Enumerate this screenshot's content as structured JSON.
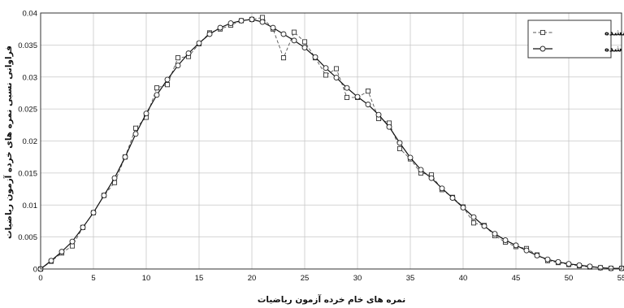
{
  "chart_data": {
    "type": "line",
    "xlabel": "نمره های خام خرده آزمون ریاضیات",
    "ylabel": "فراوانی نسبی نمره های خرده آزمون ریاضیات",
    "xlim": [
      0,
      55
    ],
    "ylim": [
      0,
      0.04
    ],
    "x_ticks": [
      "0",
      "5",
      "10",
      "15",
      "20",
      "25",
      "30",
      "35",
      "40",
      "45",
      "50",
      "55"
    ],
    "y_ticks": [
      "0",
      "0.005",
      "0.01",
      "0.015",
      "0.02",
      "0.025",
      "0.03",
      "0.035",
      "0.04"
    ],
    "grid": true,
    "legend_position": "top-right",
    "x": [
      0,
      1,
      2,
      3,
      4,
      5,
      6,
      7,
      8,
      9,
      10,
      11,
      12,
      13,
      14,
      15,
      16,
      17,
      18,
      19,
      20,
      21,
      22,
      23,
      24,
      25,
      26,
      27,
      28,
      29,
      30,
      31,
      32,
      33,
      34,
      35,
      36,
      37,
      38,
      39,
      40,
      41,
      42,
      43,
      44,
      45,
      46,
      47,
      48,
      49,
      50,
      51,
      52,
      53,
      54,
      55
    ],
    "series": [
      {
        "name": "هموار نشده",
        "marker": "square",
        "style": "dashed",
        "values": [
          0,
          0.0012,
          0.0025,
          0.0036,
          0.0065,
          0.0088,
          0.0115,
          0.0135,
          0.0175,
          0.022,
          0.0237,
          0.0283,
          0.0288,
          0.033,
          0.0332,
          0.0352,
          0.0369,
          0.0375,
          0.0381,
          0.0388,
          0.039,
          0.0393,
          0.0375,
          0.033,
          0.037,
          0.0355,
          0.033,
          0.0303,
          0.0313,
          0.0268,
          0.0268,
          0.0278,
          0.0235,
          0.0228,
          0.0188,
          0.0172,
          0.015,
          0.0147,
          0.0124,
          0.0112,
          0.0097,
          0.0072,
          0.0068,
          0.0052,
          0.0042,
          0.0035,
          0.0032,
          0.0022,
          0.0013,
          0.001,
          0.0007,
          0.0005,
          0.0003,
          0.0002,
          0.0001,
          0.0001
        ]
      },
      {
        "name": "هموار شده",
        "marker": "circle",
        "style": "solid",
        "values": [
          0,
          0.0013,
          0.0027,
          0.0043,
          0.0065,
          0.0088,
          0.0115,
          0.0142,
          0.0175,
          0.0211,
          0.0243,
          0.0272,
          0.0296,
          0.0318,
          0.0337,
          0.0353,
          0.0367,
          0.0377,
          0.0384,
          0.0388,
          0.039,
          0.0386,
          0.0377,
          0.0367,
          0.0357,
          0.0346,
          0.0331,
          0.0314,
          0.0299,
          0.0283,
          0.0269,
          0.0257,
          0.0241,
          0.0222,
          0.0197,
          0.0174,
          0.0155,
          0.0142,
          0.0126,
          0.0111,
          0.0096,
          0.0081,
          0.0067,
          0.0055,
          0.0045,
          0.0037,
          0.0029,
          0.0021,
          0.0015,
          0.0011,
          0.0008,
          0.0006,
          0.0004,
          0.0002,
          0.0001,
          0.0001
        ]
      }
    ]
  }
}
